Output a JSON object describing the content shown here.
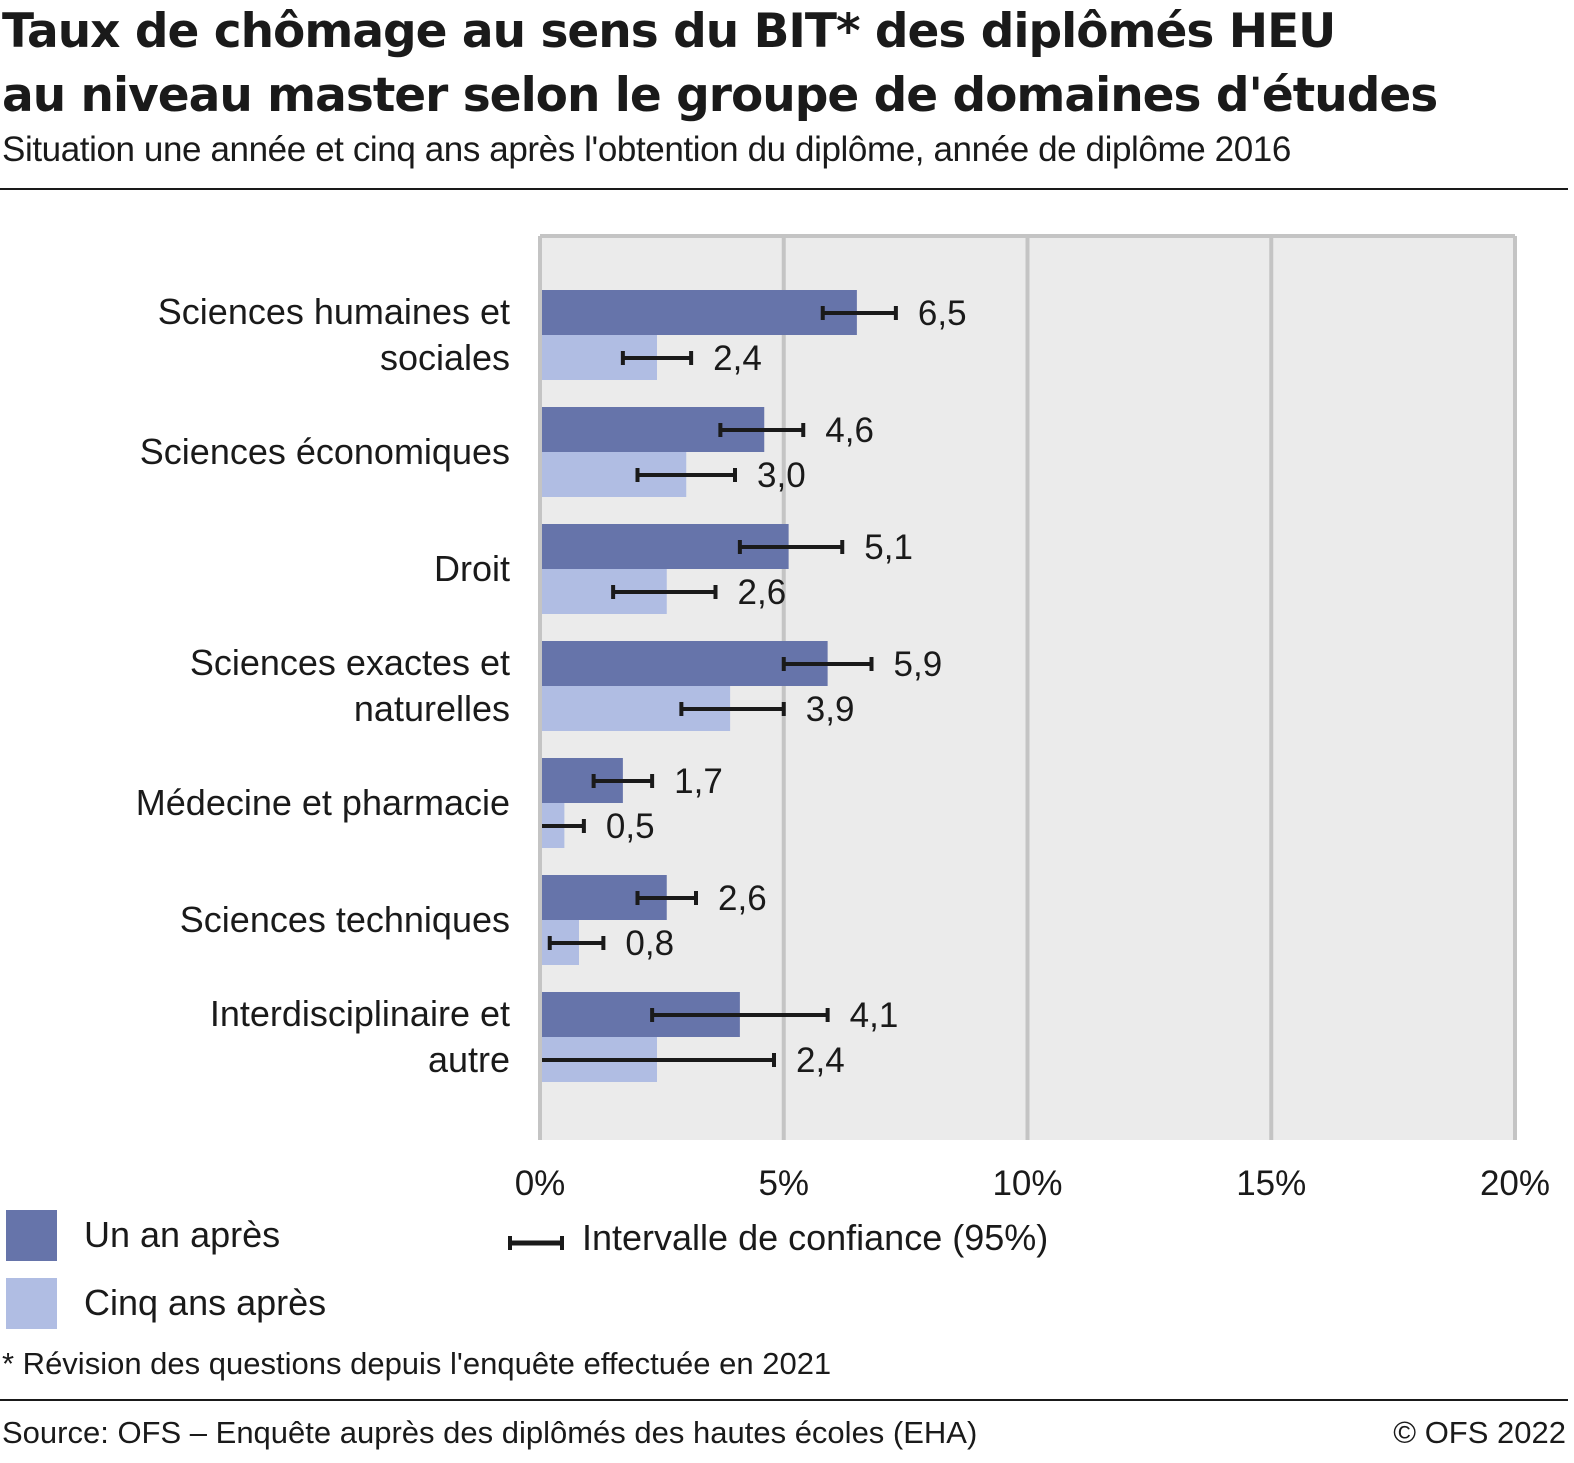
{
  "header": {
    "title_line1": "Taux de chômage au sens du BIT* des diplômés HEU",
    "title_line2": "au niveau master selon le groupe de domaines d'études",
    "subtitle": "Situation une année et cinq ans après l'obtention du diplôme, année de diplôme 2016"
  },
  "chart_data": {
    "type": "bar",
    "orientation": "horizontal",
    "categories": [
      [
        "Sciences humaines et",
        "sociales"
      ],
      [
        "Sciences économiques"
      ],
      [
        "Droit"
      ],
      [
        "Sciences exactes et",
        "naturelles"
      ],
      [
        "Médecine et pharmacie"
      ],
      [
        "Sciences techniques"
      ],
      [
        "Interdisciplinaire et",
        "autre"
      ]
    ],
    "series": [
      {
        "name": "Un an après",
        "color": "#6674aa",
        "values": [
          6.5,
          4.6,
          5.1,
          5.9,
          1.7,
          2.6,
          4.1
        ],
        "labels": [
          "6,5",
          "4,6",
          "5,1",
          "5,9",
          "1,7",
          "2,6",
          "4,1"
        ],
        "ci": [
          [
            5.8,
            7.3
          ],
          [
            3.7,
            5.4
          ],
          [
            4.1,
            6.2
          ],
          [
            5.0,
            6.8
          ],
          [
            1.1,
            2.3
          ],
          [
            2.0,
            3.2
          ],
          [
            2.3,
            5.9
          ]
        ]
      },
      {
        "name": "Cinq ans après",
        "color": "#b0bde3",
        "values": [
          2.4,
          3.0,
          2.6,
          3.9,
          0.5,
          0.8,
          2.4
        ],
        "labels": [
          "2,4",
          "3,0",
          "2,6",
          "3,9",
          "0,5",
          "0,8",
          "2,4"
        ],
        "ci": [
          [
            1.7,
            3.1
          ],
          [
            2.0,
            4.0
          ],
          [
            1.5,
            3.6
          ],
          [
            2.9,
            5.0
          ],
          [
            0.0,
            0.9
          ],
          [
            0.2,
            1.3
          ],
          [
            0.0,
            4.8
          ]
        ]
      }
    ],
    "xlim": [
      0,
      20
    ],
    "xticks": [
      0,
      5,
      10,
      15,
      20
    ],
    "xtick_labels": [
      "0%",
      "5%",
      "10%",
      "15%",
      "20%"
    ],
    "grid": true,
    "plot_background": "#ebebeb",
    "gridline_color": "#c4c4c4",
    "errorbar_color": "#1a1a1a",
    "legend": {
      "position": "bottom-left",
      "ci_label": "Intervalle de confiance (95%)"
    }
  },
  "footer": {
    "footnote": "* Révision des questions depuis l'enquête effectuée en 2021",
    "source": "Source: OFS – Enquête auprès des diplômés des hautes écoles (EHA)",
    "copyright": "© OFS 2022"
  }
}
